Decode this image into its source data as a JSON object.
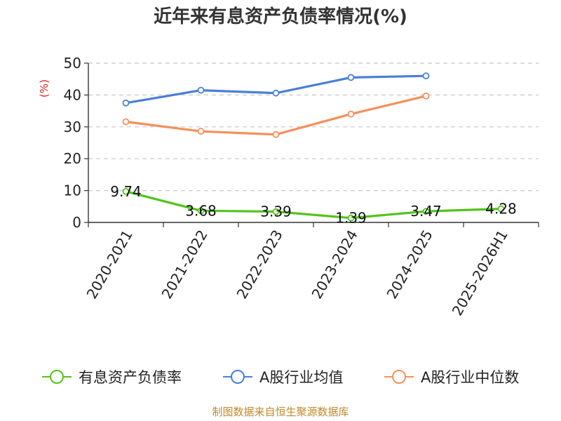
{
  "chart_data": {
    "type": "line",
    "title": "近年来有息资产负债率情况(%)",
    "ylabel": "(%)",
    "ylim": [
      0,
      50
    ],
    "yticks": [
      "0",
      "10",
      "20",
      "30",
      "40",
      "50"
    ],
    "grid": true,
    "legend_position": "bottom",
    "categories": [
      "2020-2021",
      "2021-2022",
      "2022-2023",
      "2023-2024",
      "2024-2025",
      "2025-2026H1"
    ],
    "series": [
      {
        "name": "有息资产负债率",
        "color": "#52c41a",
        "values": [
          9.74,
          3.68,
          3.39,
          1.39,
          3.47,
          4.28
        ],
        "labels": [
          "9.74",
          "3.68",
          "3.39",
          "1.39",
          "3.47",
          "4.28"
        ]
      },
      {
        "name": "A股行业均值",
        "color": "#4a7fd8",
        "values": [
          37.5,
          41.5,
          40.6,
          45.5,
          46.0,
          null
        ]
      },
      {
        "name": "A股行业中位数",
        "color": "#f5905a",
        "values": [
          31.6,
          28.6,
          27.6,
          34.0,
          39.7,
          null
        ]
      }
    ],
    "source": "制图数据来自恒生聚源数据库"
  }
}
